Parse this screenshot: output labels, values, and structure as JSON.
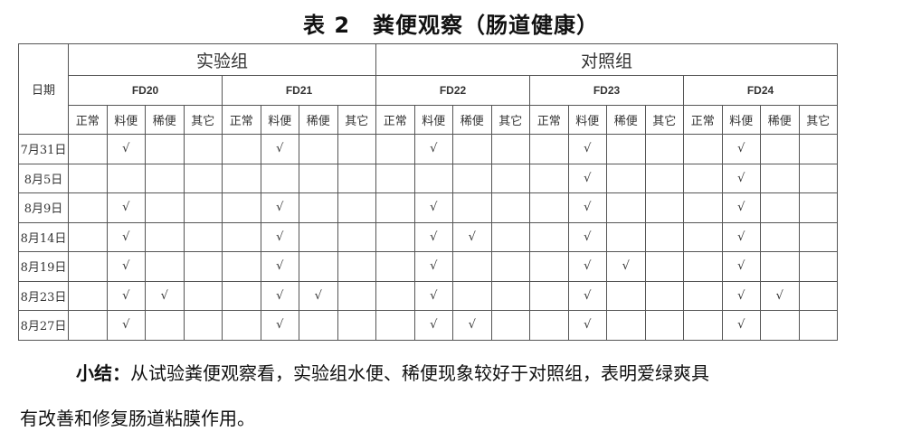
{
  "title": "表 2　粪便观察（肠道健康）",
  "table": {
    "date_header": "日期",
    "groups": [
      "实验组",
      "对照组"
    ],
    "fds": [
      "FD20",
      "FD21",
      "FD22",
      "FD23",
      "FD24"
    ],
    "sub_headers": [
      "正常",
      "料便",
      "稀便",
      "其它"
    ],
    "rows": [
      {
        "date": "7月31日",
        "cells": [
          "",
          "√",
          "",
          "",
          "",
          "√",
          "",
          "",
          "",
          "√",
          "",
          "",
          "",
          "√",
          "",
          "",
          "",
          "√",
          "",
          ""
        ]
      },
      {
        "date": "8月5日",
        "cells": [
          "",
          "",
          "",
          "",
          "",
          "",
          "",
          "",
          "",
          "",
          "",
          "",
          "",
          "√",
          "",
          "",
          "",
          "√",
          "",
          ""
        ]
      },
      {
        "date": "8月9日",
        "cells": [
          "",
          "√",
          "",
          "",
          "",
          "√",
          "",
          "",
          "",
          "√",
          "",
          "",
          "",
          "√",
          "",
          "",
          "",
          "√",
          "",
          ""
        ]
      },
      {
        "date": "8月14日",
        "cells": [
          "",
          "√",
          "",
          "",
          "",
          "√",
          "",
          "",
          "",
          "√",
          "√",
          "",
          "",
          "√",
          "",
          "",
          "",
          "√",
          "",
          ""
        ]
      },
      {
        "date": "8月19日",
        "cells": [
          "",
          "√",
          "",
          "",
          "",
          "√",
          "",
          "",
          "",
          "√",
          "",
          "",
          "",
          "√",
          "√",
          "",
          "",
          "√",
          "",
          ""
        ]
      },
      {
        "date": "8月23日",
        "cells": [
          "",
          "√",
          "√",
          "",
          "",
          "√",
          "√",
          "",
          "",
          "√",
          "",
          "",
          "",
          "√",
          "",
          "",
          "",
          "√",
          "√",
          ""
        ]
      },
      {
        "date": "8月27日",
        "cells": [
          "",
          "√",
          "",
          "",
          "",
          "√",
          "",
          "",
          "",
          "√",
          "√",
          "",
          "",
          "√",
          "",
          "",
          "",
          "√",
          "",
          ""
        ]
      }
    ]
  },
  "summary": {
    "label": "小结：",
    "line1": "从试验粪便观察看，实验组水便、稀便现象较好于对照组，表明爱绿爽具",
    "line2": "有改善和修复肠道粘膜作用。"
  }
}
